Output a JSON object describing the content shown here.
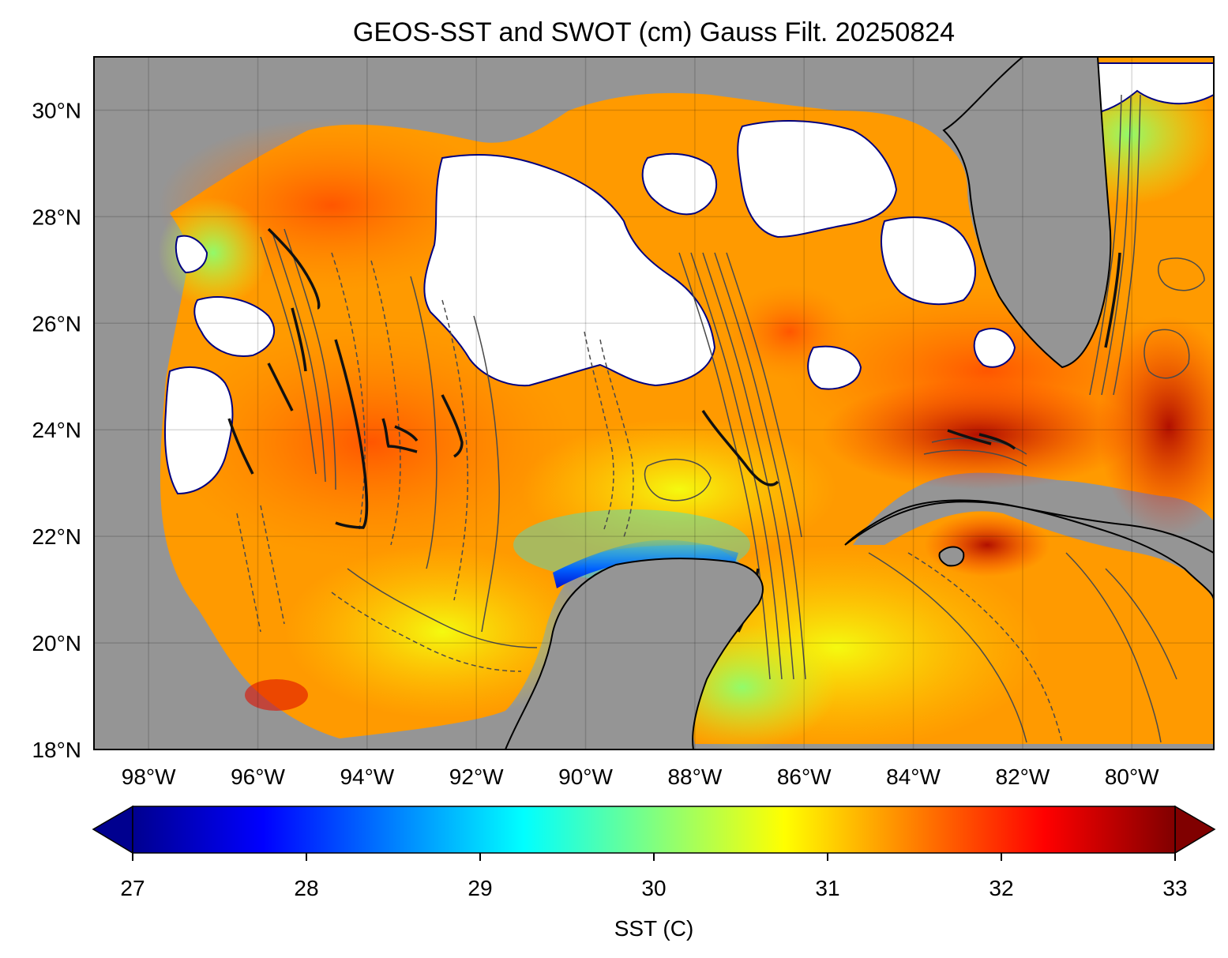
{
  "map": {
    "title": "GEOS-SST  and SWOT (cm) Gauss Filt. 20250824",
    "lon_range": [
      -99,
      -78.5
    ],
    "lat_range": [
      18,
      31
    ],
    "lat_ticks": [
      {
        "value": 30,
        "label": "30°N"
      },
      {
        "value": 28,
        "label": "28°N"
      },
      {
        "value": 26,
        "label": "26°N"
      },
      {
        "value": 24,
        "label": "24°N"
      },
      {
        "value": 22,
        "label": "22°N"
      },
      {
        "value": 20,
        "label": "20°N"
      },
      {
        "value": 18,
        "label": "18°N"
      }
    ],
    "lon_ticks": [
      {
        "value": -98,
        "label": "98°W"
      },
      {
        "value": -96,
        "label": "96°W"
      },
      {
        "value": -94,
        "label": "94°W"
      },
      {
        "value": -92,
        "label": "92°W"
      },
      {
        "value": -90,
        "label": "90°W"
      },
      {
        "value": -88,
        "label": "88°W"
      },
      {
        "value": -86,
        "label": "86°W"
      },
      {
        "value": -84,
        "label": "84°W"
      },
      {
        "value": -82,
        "label": "82°W"
      },
      {
        "value": -80,
        "label": "80°W"
      }
    ],
    "land_color": "#959595",
    "cloud_color": "#ffffff",
    "contour_color": "#4a4a4a",
    "coast_color": "#000000"
  },
  "colorbar": {
    "label": "SST (C)",
    "vmin": 27,
    "vmax": 33,
    "ticks": [
      {
        "value": 27,
        "label": "27"
      },
      {
        "value": 28,
        "label": "28"
      },
      {
        "value": 29,
        "label": "29"
      },
      {
        "value": 30,
        "label": "30"
      },
      {
        "value": 31,
        "label": "31"
      },
      {
        "value": 32,
        "label": "32"
      },
      {
        "value": 33,
        "label": "33"
      }
    ],
    "colormap": "jet",
    "extend": "both"
  }
}
